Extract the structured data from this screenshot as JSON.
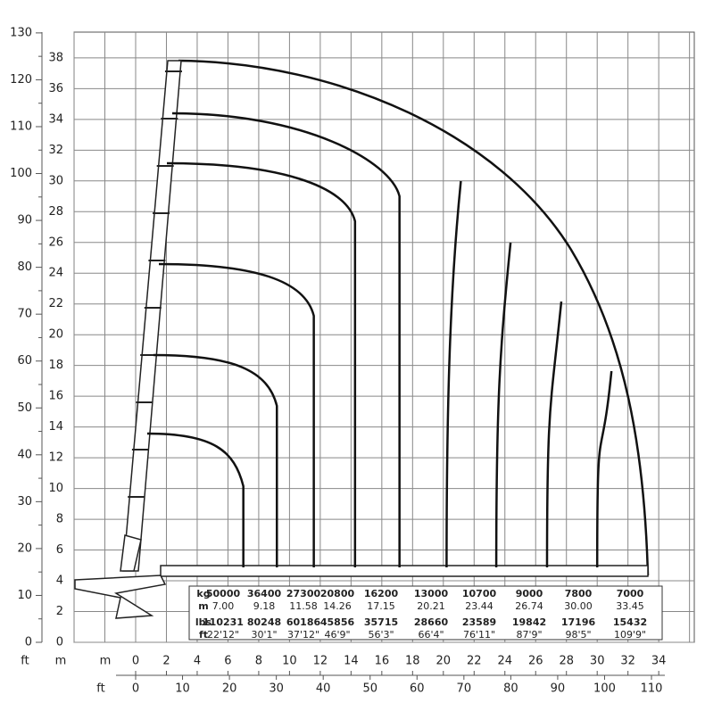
{
  "left_ft_axis": {
    "label": "ft",
    "ticks": [
      0,
      10,
      20,
      30,
      40,
      50,
      60,
      70,
      80,
      90,
      100,
      110,
      120,
      130
    ]
  },
  "left_m_axis": {
    "label": "m",
    "ticks": [
      0,
      2,
      4,
      6,
      8,
      10,
      12,
      14,
      16,
      18,
      20,
      22,
      24,
      26,
      28,
      30,
      32,
      34,
      36,
      38
    ]
  },
  "bottom_m_axis": {
    "label": "m",
    "ticks": [
      0,
      2,
      4,
      6,
      8,
      10,
      12,
      14,
      16,
      18,
      20,
      22,
      24,
      26,
      28,
      30,
      32,
      34
    ]
  },
  "bottom_ft_axis": {
    "label": "ft",
    "ticks": [
      0,
      10,
      20,
      30,
      40,
      50,
      60,
      70,
      80,
      90,
      100,
      110
    ]
  },
  "load_table": {
    "rows": [
      {
        "label": "kg",
        "values": [
          50000,
          36400,
          27300,
          20800,
          16200,
          13000,
          10700,
          9000,
          7800,
          7000
        ]
      },
      {
        "label": "m",
        "values": [
          "7.00",
          "9.18",
          "11.58",
          "14.26",
          "17.15",
          "20.21",
          "23.44",
          "26.74",
          "30.00",
          "33.45"
        ]
      },
      {
        "label": "lbs",
        "values": [
          110231,
          80248,
          60186,
          45856,
          35715,
          28660,
          23589,
          19842,
          17196,
          15432
        ]
      },
      {
        "label": "ft",
        "values": [
          "22'12\"",
          "30'1\"",
          "37'12\"",
          "46'9\"",
          "56'3\"",
          "66'4\"",
          "76'11\"",
          "87'9\"",
          "98'5\"",
          "109'9\""
        ]
      }
    ]
  }
}
